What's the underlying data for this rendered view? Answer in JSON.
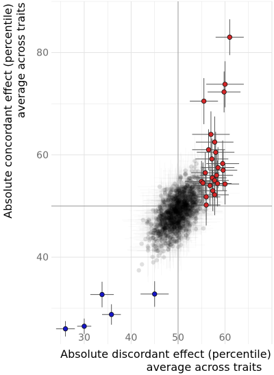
{
  "chart_data": {
    "type": "scatter",
    "title": "",
    "xlabel": [
      "Absolute discordant effect (percentile)",
      "average across traits"
    ],
    "ylabel": [
      "Absolute concordant effect (percentile)",
      "average across traits"
    ],
    "xlim": [
      23,
      70
    ],
    "ylim": [
      23,
      90
    ],
    "x_ticks": [
      30,
      40,
      50,
      60
    ],
    "y_ticks": [
      40,
      60,
      80
    ],
    "reference_lines": {
      "x": 50,
      "y": 50
    },
    "grid": true,
    "legend": "none",
    "colors": {
      "background_cloud": "#000000",
      "error_bars": "#555555",
      "high_points": "#d62728",
      "low_points": "#1616c8",
      "grid": "#e3e3e3",
      "reference": "#999999"
    },
    "high_points": [
      {
        "x": 61.0,
        "y": 83.0,
        "xerr": 3.0,
        "yerr": 3.5
      },
      {
        "x": 60.0,
        "y": 73.8,
        "xerr": 4.0,
        "yerr": 4.5
      },
      {
        "x": 59.8,
        "y": 72.3,
        "xerr": 3.5,
        "yerr": 4.0
      },
      {
        "x": 55.5,
        "y": 70.5,
        "xerr": 3.0,
        "yerr": 4.5
      },
      {
        "x": 57.0,
        "y": 64.0,
        "xerr": 4.0,
        "yerr": 4.5
      },
      {
        "x": 57.8,
        "y": 62.5,
        "xerr": 4.0,
        "yerr": 5.0
      },
      {
        "x": 56.5,
        "y": 61.0,
        "xerr": 3.5,
        "yerr": 4.0
      },
      {
        "x": 58.0,
        "y": 60.5,
        "xerr": 4.0,
        "yerr": 4.0
      },
      {
        "x": 57.2,
        "y": 59.2,
        "xerr": 3.5,
        "yerr": 4.0
      },
      {
        "x": 59.5,
        "y": 58.3,
        "xerr": 3.5,
        "yerr": 4.5
      },
      {
        "x": 58.5,
        "y": 57.5,
        "xerr": 3.5,
        "yerr": 4.0
      },
      {
        "x": 59.6,
        "y": 57.0,
        "xerr": 3.0,
        "yerr": 4.0
      },
      {
        "x": 55.8,
        "y": 56.5,
        "xerr": 3.0,
        "yerr": 4.0
      },
      {
        "x": 58.2,
        "y": 56.0,
        "xerr": 3.5,
        "yerr": 4.5
      },
      {
        "x": 57.3,
        "y": 55.5,
        "xerr": 3.0,
        "yerr": 4.0
      },
      {
        "x": 57.8,
        "y": 55.0,
        "xerr": 3.0,
        "yerr": 4.0
      },
      {
        "x": 55.0,
        "y": 54.8,
        "xerr": 3.5,
        "yerr": 4.0
      },
      {
        "x": 55.3,
        "y": 54.5,
        "xerr": 3.0,
        "yerr": 4.0
      },
      {
        "x": 58.4,
        "y": 54.4,
        "xerr": 3.0,
        "yerr": 4.5
      },
      {
        "x": 56.8,
        "y": 54.0,
        "xerr": 3.5,
        "yerr": 4.0
      },
      {
        "x": 60.0,
        "y": 54.3,
        "xerr": 3.0,
        "yerr": 4.0
      },
      {
        "x": 57.4,
        "y": 53.0,
        "xerr": 3.0,
        "yerr": 4.0
      },
      {
        "x": 57.8,
        "y": 52.2,
        "xerr": 3.0,
        "yerr": 4.0
      },
      {
        "x": 56.0,
        "y": 51.8,
        "xerr": 3.0,
        "yerr": 4.5
      },
      {
        "x": 56.0,
        "y": 50.2,
        "xerr": 3.0,
        "yerr": 4.0
      }
    ],
    "low_points": [
      {
        "x": 26.0,
        "y": 26.0,
        "xerr": 2.0,
        "yerr": 1.5
      },
      {
        "x": 30.0,
        "y": 26.5,
        "xerr": 1.5,
        "yerr": 1.5
      },
      {
        "x": 33.8,
        "y": 32.7,
        "xerr": 2.5,
        "yerr": 2.5
      },
      {
        "x": 35.8,
        "y": 28.8,
        "xerr": 2.0,
        "yerr": 2.0
      },
      {
        "x": 45.0,
        "y": 32.8,
        "xerr": 3.0,
        "yerr": 2.5
      }
    ],
    "cloud": {
      "center": {
        "x": 50.0,
        "y": 49.0
      },
      "sd_x": 2.6,
      "sd_y": 3.2,
      "correlation": 0.6,
      "typical_xerr": 3.5,
      "typical_yerr": 3.5
    }
  }
}
